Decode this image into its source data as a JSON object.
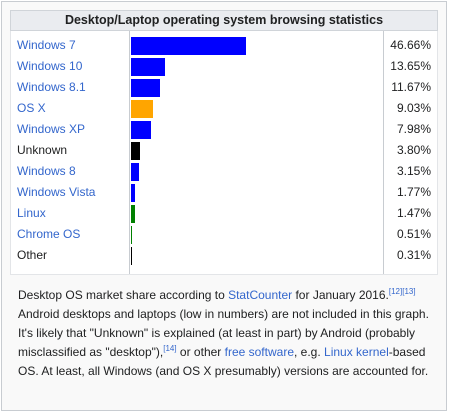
{
  "chart_data": {
    "type": "bar",
    "title": "Desktop/Laptop operating system browsing statistics",
    "categories": [
      "Windows 7",
      "Windows 10",
      "Windows 8.1",
      "OS X",
      "Windows XP",
      "Unknown",
      "Windows 8",
      "Windows Vista",
      "Linux",
      "Chrome OS",
      "Other"
    ],
    "values": [
      46.66,
      13.65,
      11.67,
      9.03,
      7.98,
      3.8,
      3.15,
      1.77,
      1.47,
      0.51,
      0.31
    ],
    "value_labels": [
      "46.66%",
      "13.65%",
      "11.67%",
      "9.03%",
      "7.98%",
      "3.80%",
      "3.15%",
      "1.77%",
      "1.47%",
      "0.51%",
      "0.31%"
    ],
    "bar_colors": [
      "#0000ff",
      "#0000ff",
      "#0000ff",
      "#ffa500",
      "#0000ff",
      "#000000",
      "#0000ff",
      "#0000ff",
      "#008000",
      "#008000",
      "#000000"
    ],
    "linked": [
      true,
      true,
      true,
      true,
      true,
      false,
      true,
      true,
      true,
      true,
      false
    ],
    "xlim": [
      0,
      100
    ]
  },
  "caption": {
    "t1": "Desktop OS market share according to ",
    "link_statcounter": "StatCounter",
    "t2": " for January 2016.",
    "ref1": "[12]",
    "ref2": "[13]",
    "t3": " Android desktops and laptops (low in numbers) are not included in this graph. It's likely that \"Unknown\" is explained (at least in part) by Android (probably misclassified as \"desktop\"),",
    "ref3": "[14]",
    "t4": " or other ",
    "link_free_software": "free software",
    "t5": ", e.g. ",
    "link_linux_kernel": "Linux kernel",
    "t6": "-based OS. At least, all Windows (and OS X presumably) versions are accounted for."
  }
}
